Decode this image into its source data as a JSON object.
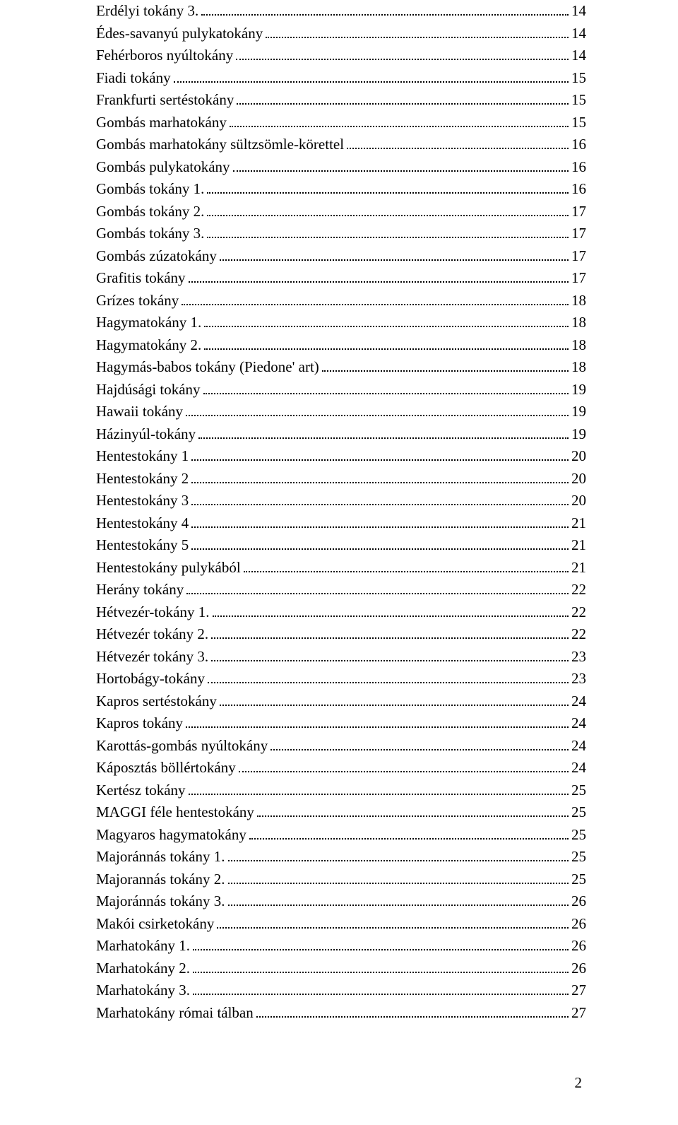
{
  "toc": {
    "entries": [
      {
        "label": "Erdélyi tokány 3.",
        "page": "14"
      },
      {
        "label": "Édes-savanyú pulykatokány",
        "page": "14"
      },
      {
        "label": "Fehérboros nyúltokány",
        "page": "14"
      },
      {
        "label": "Fiadi tokány",
        "page": "15"
      },
      {
        "label": "Frankfurti sertéstokány",
        "page": "15"
      },
      {
        "label": "Gombás marhatokány",
        "page": "15"
      },
      {
        "label": "Gombás marhatokány sültzsömle-körettel",
        "page": "16"
      },
      {
        "label": "Gombás pulykatokány",
        "page": "16"
      },
      {
        "label": "Gombás tokány 1.",
        "page": "16"
      },
      {
        "label": "Gombás tokány 2.",
        "page": "17"
      },
      {
        "label": "Gombás tokány 3.",
        "page": "17"
      },
      {
        "label": "Gombás zúzatokány",
        "page": "17"
      },
      {
        "label": "Grafitis tokány",
        "page": "17"
      },
      {
        "label": "Grízes tokány",
        "page": "18"
      },
      {
        "label": "Hagymatokány 1.",
        "page": "18"
      },
      {
        "label": "Hagymatokány 2.",
        "page": "18"
      },
      {
        "label": "Hagymás-babos tokány (Piedone' art)",
        "page": "18"
      },
      {
        "label": "Hajdúsági tokány",
        "page": "19"
      },
      {
        "label": "Hawaii tokány",
        "page": "19"
      },
      {
        "label": "Házinyúl-tokány",
        "page": "19"
      },
      {
        "label": "Hentestokány 1",
        "page": "20"
      },
      {
        "label": "Hentestokány 2",
        "page": "20"
      },
      {
        "label": "Hentestokány 3",
        "page": "20"
      },
      {
        "label": "Hentestokány 4",
        "page": "21"
      },
      {
        "label": "Hentestokány 5",
        "page": "21"
      },
      {
        "label": "Hentestokány pulykából",
        "page": "21"
      },
      {
        "label": "Herány tokány",
        "page": "22"
      },
      {
        "label": "Hétvezér-tokány 1.",
        "page": "22"
      },
      {
        "label": "Hétvezér tokány 2.",
        "page": "22"
      },
      {
        "label": "Hétvezér tokány 3.",
        "page": "23"
      },
      {
        "label": "Hortobágy-tokány",
        "page": "23"
      },
      {
        "label": "Kapros sertéstokány",
        "page": "24"
      },
      {
        "label": "Kapros tokány",
        "page": "24"
      },
      {
        "label": "Karottás-gombás nyúltokány",
        "page": "24"
      },
      {
        "label": "Káposztás böllértokány",
        "page": "24"
      },
      {
        "label": "Kertész tokány",
        "page": "25"
      },
      {
        "label": "MAGGI féle hentestokány",
        "page": "25"
      },
      {
        "label": "Magyaros hagymatokány",
        "page": "25"
      },
      {
        "label": "Majoránnás tokány 1.",
        "page": "25"
      },
      {
        "label": "Majorannás tokány 2.",
        "page": "25"
      },
      {
        "label": "Majoránnás tokány 3.",
        "page": "26"
      },
      {
        "label": "Makói csirketokány",
        "page": "26"
      },
      {
        "label": "Marhatokány 1.",
        "page": "26"
      },
      {
        "label": "Marhatokány 2.",
        "page": "26"
      },
      {
        "label": "Marhatokány 3.",
        "page": "27"
      },
      {
        "label": "Marhatokány római tálban",
        "page": "27"
      }
    ]
  },
  "footer": {
    "page_number": "2"
  },
  "style": {
    "font_family": "Times New Roman",
    "font_size_pt": 16,
    "text_color": "#000000",
    "background_color": "#ffffff",
    "leader_style": "dotted",
    "leader_color": "#000000"
  }
}
